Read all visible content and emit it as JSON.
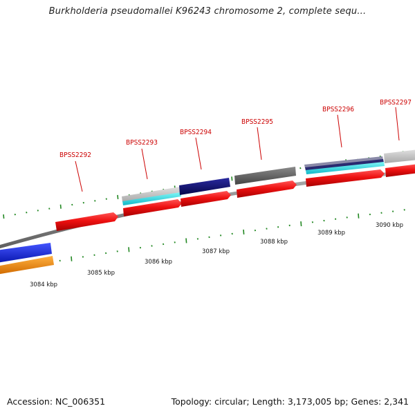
{
  "title": "Burkholderia pseudomallei K96243 chromosome 2, complete sequ...",
  "footer": {
    "accession": "Accession: NC_006351",
    "summary": "Topology: circular; Length: 3,173,005 bp; Genes: 2,341"
  },
  "genes": [
    {
      "label": "BPSS2292"
    },
    {
      "label": "BPSS2293"
    },
    {
      "label": "BPSS2294"
    },
    {
      "label": "BPSS2295"
    },
    {
      "label": "BPSS2296"
    },
    {
      "label": "BPSS2297"
    }
  ],
  "scale": [
    {
      "label": "3084 kbp"
    },
    {
      "label": "3085 kbp"
    },
    {
      "label": "3086 kbp"
    },
    {
      "label": "3087 kbp"
    },
    {
      "label": "3088 kbp"
    },
    {
      "label": "3089 kbp"
    },
    {
      "label": "3090 kbp"
    }
  ],
  "colors": {
    "cds": "#ee1111",
    "backbone": "#8a8a8a",
    "tick": "#228822",
    "label": "#cc0000",
    "feature_blue": "#1a2ee0",
    "feature_orange": "#f08a10",
    "feature_navy": "#101070",
    "feature_cyan": "#22e0e0",
    "feature_gray": "#666666",
    "feature_lightgray": "#c4c4c4"
  }
}
